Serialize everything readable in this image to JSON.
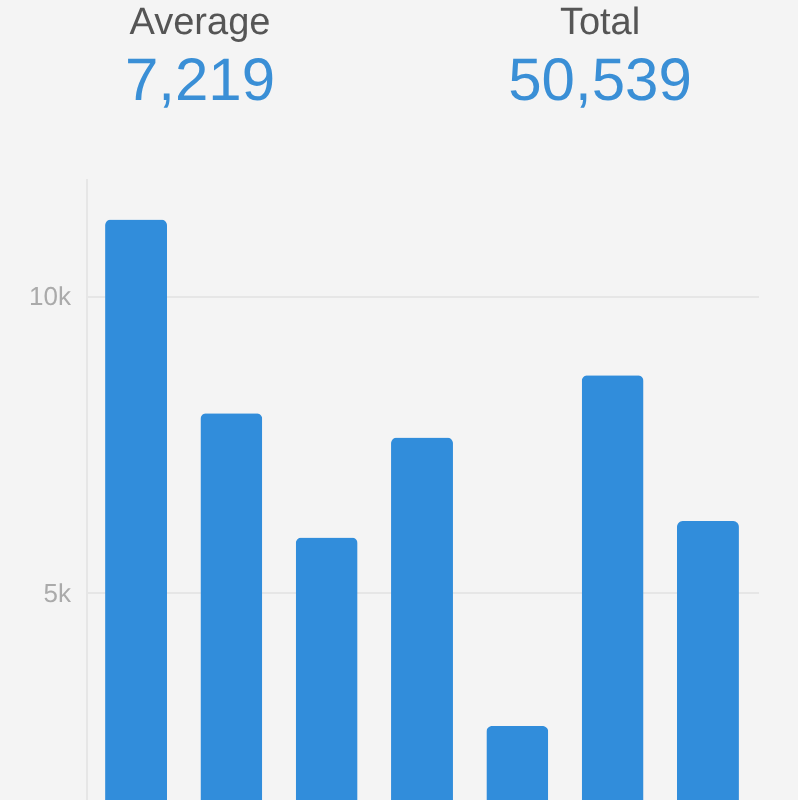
{
  "chart_data": {
    "type": "bar",
    "categories": [
      null,
      null,
      null,
      null,
      null,
      null,
      null
    ],
    "values": [
      11300,
      8030,
      5930,
      7620,
      2750,
      8670,
      6210
    ],
    "color": "#318ddb",
    "ylim": [
      1500,
      12000
    ],
    "yticks": [
      {
        "value": 5000,
        "label": "5k"
      },
      {
        "value": 10000,
        "label": "10k"
      }
    ],
    "grid": "y",
    "tick_labels": "y",
    "annotations": [
      "Average",
      "7,219",
      "Total",
      "50,539"
    ]
  }
}
